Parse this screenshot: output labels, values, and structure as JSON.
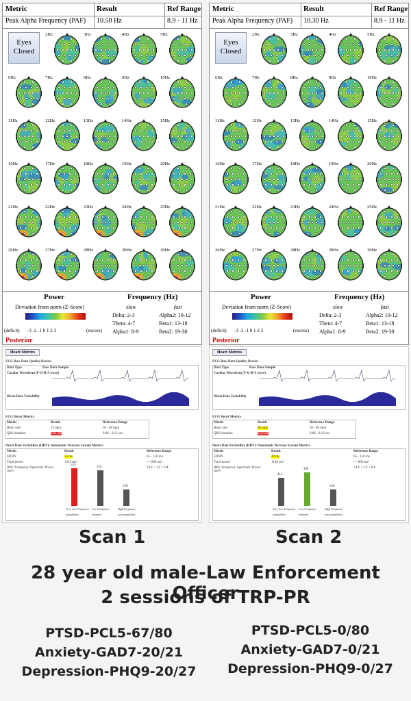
{
  "scans": [
    {
      "metric_h": "Metric",
      "result_h": "Result",
      "ref_h": "Ref Range",
      "metric": "Peak Alpha Frequency (PAF)",
      "result": "10.50 Hz",
      "ref": "8.9 - 11 Hz",
      "eyes_line1": "Eyes",
      "eyes_line2": "Closed",
      "power": "Power",
      "freq": "Frequency (Hz)",
      "deviation": "Deviation from norm (Z-Score)",
      "deficit": "(deficit)",
      "excess": "(excess)",
      "zscale": "-3  -2  -1   0   1   2   3",
      "slow": "slow",
      "fast": "fast",
      "delta": "Delta:  2-3",
      "theta": "Theta:  4-7",
      "alpha1": "Alpha1: 8-9",
      "alpha2": "Alpha2: 10-12",
      "beta1": "Beta1:  13-18",
      "beta2": "Beta2:  19-30",
      "posterior": "Posterior",
      "hz_labels": [
        "2Hz",
        "3Hz",
        "4Hz",
        "5Hz",
        "6Hz",
        "7Hz",
        "8Hz",
        "9Hz",
        "10Hz",
        "11Hz",
        "12Hz",
        "13Hz",
        "14Hz",
        "15Hz",
        "16Hz",
        "17Hz",
        "18Hz",
        "19Hz",
        "20Hz",
        "21Hz",
        "22Hz",
        "23Hz",
        "24Hz",
        "25Hz",
        "26Hz",
        "27Hz",
        "28Hz",
        "29Hz",
        "30Hz"
      ],
      "heart_btn": "Heart Metrics",
      "ecg_title": "ECG Raw Data Quality Review",
      "data_type": "Data Type",
      "raw_sample": "Raw Data Sample",
      "cardiac": "Cardiac Waveform (P-Q-R-S wave)",
      "hrv_label": "Heart Rate Variability",
      "ecg_metrics": "ECG Heart Metrics",
      "m_h": "Metric",
      "r_h": "Result",
      "rr_h": "Reference Range",
      "hr_label": "Heart rate",
      "hr_value": "74 bpm",
      "hr_ref": "50 - 80 bpm",
      "qrs_label": "QRS duration",
      "qrs_value": "0.11 sec",
      "qrs_ref": "0.06 - 0.12 sec",
      "hrv_title": "Heart Rate Variability (HRV): Autonomic Nervous System Metrics",
      "sdnn_label": "SDNN",
      "sdnn_value": "56 ms",
      "sdnn_ref": "65 - 150 ms",
      "tp_label": "Total power",
      "tp_value": "1319 ms²",
      "tp_ref": ">= 800 ms²",
      "hf_label": "HRV Frequency Spectrum: Power (ms²)",
      "hf_ref": "VLF < LF > HF",
      "bars": [
        {
          "label": "Very Low Frequency",
          "value": 553,
          "color": "#e02020"
        },
        {
          "label": "Low Frequency",
          "value": 524,
          "color": "#555555"
        },
        {
          "label": "High Frequency",
          "value": 238,
          "color": "#555555"
        }
      ],
      "bar_notes": [
        "sympathetic",
        "balanced",
        "parasympathetic"
      ],
      "scan_label": "Scan 1"
    },
    {
      "metric_h": "Metric",
      "result_h": "Result",
      "ref_h": "Ref Range",
      "metric": "Peak Alpha Frequency (PAF)",
      "result": "10.30 Hz",
      "ref": "8.9 - 11 Hz",
      "eyes_line1": "Eyes",
      "eyes_line2": "Closed",
      "power": "Power",
      "freq": "Frequency (Hz)",
      "deviation": "Deviation from norm (Z-Score)",
      "deficit": "(deficit)",
      "excess": "(excess)",
      "zscale": "-3  -2  -1   0   1   2   3",
      "slow": "slow",
      "fast": "fast",
      "delta": "Delta:  2-3",
      "theta": "Theta:  4-7",
      "alpha1": "Alpha1: 8-9",
      "alpha2": "Alpha2: 10-12",
      "beta1": "Beta1:  13-18",
      "beta2": "Beta2:  19-30",
      "posterior": "Posterior",
      "hz_labels": [
        "2Hz",
        "3Hz",
        "4Hz",
        "5Hz",
        "6Hz",
        "7Hz",
        "8Hz",
        "9Hz",
        "10Hz",
        "11Hz",
        "12Hz",
        "13Hz",
        "14Hz",
        "15Hz",
        "16Hz",
        "17Hz",
        "18Hz",
        "19Hz",
        "20Hz",
        "21Hz",
        "22Hz",
        "23Hz",
        "24Hz",
        "25Hz",
        "26Hz",
        "27Hz",
        "28Hz",
        "29Hz",
        "30Hz"
      ],
      "heart_btn": "Heart Metrics",
      "ecg_title": "ECG Raw Data Quality Review",
      "data_type": "Data Type",
      "raw_sample": "Raw Data Sample",
      "cardiac": "Cardiac Waveform (P-Q-R-S wave)",
      "hrv_label": "Heart Rate Variability",
      "ecg_metrics": "ECG Heart Metrics",
      "m_h": "Metric",
      "r_h": "Result",
      "rr_h": "Reference Range",
      "hr_label": "Heart rate",
      "hr_value": "80 bpm",
      "hr_ref": "50 - 80 bpm",
      "qrs_label": "QRS duration",
      "qrs_value": "0.13 sec",
      "qrs_ref": "0.06 - 0.12 sec",
      "hrv_title": "Heart Rate Variability (HRV): Autonomic Nervous System Metrics",
      "sdnn_label": "SDNN",
      "sdnn_value": "49 ms",
      "sdnn_ref": "65 - 150 ms",
      "tp_label": "Total power",
      "tp_value": "1146 ms²",
      "tp_ref": ">= 800 ms²",
      "hf_label": "HRV Frequency Spectrum: Power (ms²)",
      "hf_ref": "VLF < LF > HF",
      "bars": [
        {
          "label": "Very Low Frequency",
          "value": 414,
          "color": "#555555"
        },
        {
          "label": "Low Frequency",
          "value": 494,
          "color": "#66aa33"
        },
        {
          "label": "High Frequency",
          "value": 238,
          "color": "#555555"
        }
      ],
      "bar_notes": [
        "sympathetic",
        "balanced",
        "parasympathetic"
      ],
      "scan_label": "Scan 2"
    }
  ],
  "headline": {
    "line1": "28 year old male-Law Enforcement Officer",
    "line2": "2 sessions of TRP-PR"
  },
  "scores_left": [
    "PTSD-PCL5-67/80",
    "Anxiety-GAD7-20/21",
    "Depression-PHQ9-20/27"
  ],
  "scores_right": [
    "PTSD-PCL5-0/80",
    "Anxiety-GAD7-0/21",
    "Depression-PHQ9-0/27"
  ]
}
